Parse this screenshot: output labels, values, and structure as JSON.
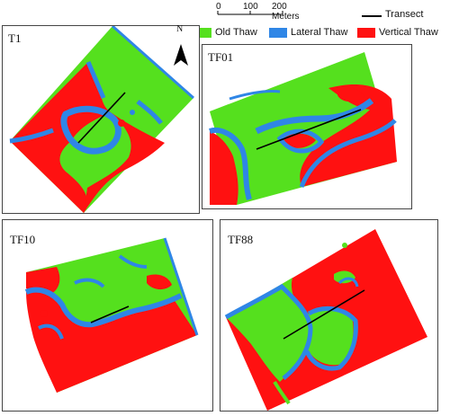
{
  "scale_bar": {
    "ticks": [
      "0",
      "100",
      "200 Meters"
    ]
  },
  "legend": {
    "transect": "Transect",
    "items": [
      {
        "label": "Old Thaw",
        "color": "#55e01e"
      },
      {
        "label": "Lateral Thaw",
        "color": "#2f86e6"
      },
      {
        "label": "Vertical Thaw",
        "color": "#ff1111"
      }
    ]
  },
  "north_arrow": {
    "label": "N"
  },
  "panels": [
    {
      "title": "T1"
    },
    {
      "title": "TF01"
    },
    {
      "title": "TF10"
    },
    {
      "title": "TF88"
    }
  ]
}
